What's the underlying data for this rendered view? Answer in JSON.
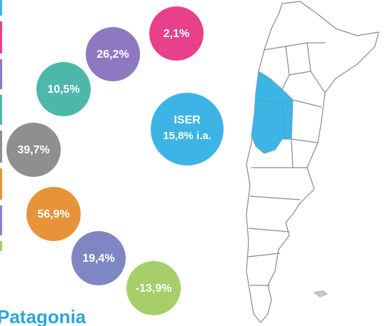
{
  "circles": [
    {
      "label": "2,1%",
      "color": "#e8408a"
    },
    {
      "label": "26,2%",
      "color": "#8e78c2"
    },
    {
      "label": "10,5%",
      "color": "#4db8aa"
    },
    {
      "label": "39,7%",
      "color": "#8f8f8f"
    },
    {
      "label": "56,9%",
      "color": "#e8923a"
    },
    {
      "label": "19,4%",
      "color": "#7e86c4"
    },
    {
      "label": "-13,9%",
      "color": "#a6cf6a"
    }
  ],
  "center": {
    "title": "ISER",
    "value": "15,8% i.a.",
    "color": "#3cb4e6"
  },
  "region_label": "Patagonia"
}
